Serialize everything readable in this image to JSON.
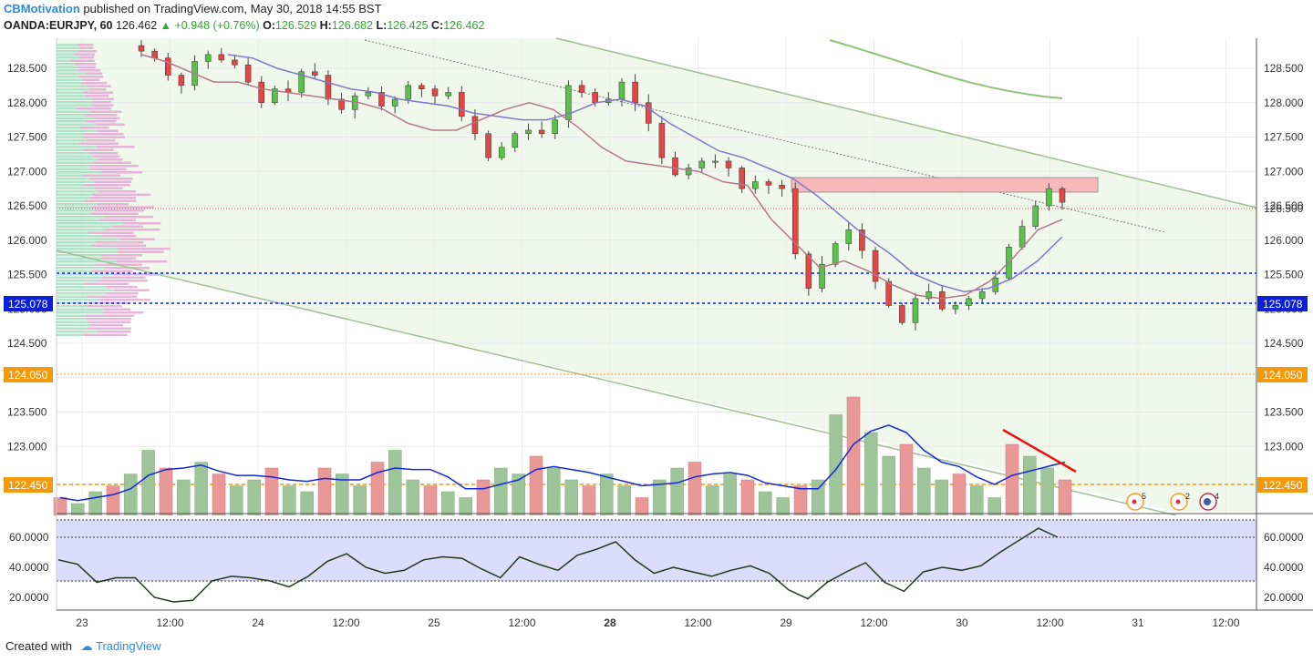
{
  "header": {
    "author": "CBMotivation",
    "published": "published on TradingView.com, May 30, 2018 14:55 BST",
    "symbol": "OANDA:EURJPY, 60",
    "last": "126.462",
    "change": "▲ +0.948 (+0.76%)",
    "o_label": "O:",
    "o": "126.529",
    "h_label": "H:",
    "h": "126.682",
    "l_label": "L:",
    "l": "126.425",
    "c_label": "C:",
    "c": "126.462"
  },
  "footer": {
    "created": "Created with",
    "brand": "TradingView"
  },
  "colors": {
    "up": "#5ac24a",
    "down": "#e04848",
    "vol_up": "#9ec49a",
    "vol_down": "#e99797",
    "channel": "#9fc08f",
    "level_blue": "#0b1fd8",
    "level_orange": "#f29a0b",
    "rsi_band": "#dcdcfb",
    "tag_blue": "#0b1fd8",
    "tag_orange": "#f29a0b"
  },
  "chart_data": [
    {
      "type": "candlestick",
      "x_labels": [
        "23",
        "12:00",
        "24",
        "12:00",
        "25",
        "12:00",
        "28",
        "12:00",
        "29",
        "12:00",
        "30",
        "12:00",
        "31",
        "12:00"
      ],
      "y_ticks": [
        "128.500",
        "128.000",
        "127.500",
        "127.000",
        "126.500",
        "126.000",
        "125.500",
        "125.000",
        "124.500",
        "124.000",
        "123.500",
        "123.000",
        "122.450"
      ],
      "ylim": [
        122.0,
        129.0
      ],
      "series": [
        {
          "name": "EURJPY hourly close (approx.)",
          "values": [
            128.75,
            128.65,
            128.4,
            128.25,
            128.6,
            128.7,
            128.62,
            128.55,
            128.3,
            128.0,
            128.2,
            128.15,
            128.45,
            128.4,
            128.05,
            127.9,
            128.1,
            128.15,
            127.95,
            128.05,
            128.25,
            128.2,
            128.1,
            128.15,
            127.8,
            127.55,
            127.2,
            127.35,
            127.55,
            127.6,
            127.55,
            127.75,
            128.25,
            128.15,
            128.0,
            128.05,
            128.3,
            128.0,
            127.7,
            127.2,
            126.95,
            127.05,
            127.15,
            127.15,
            127.05,
            126.75,
            126.85,
            126.8,
            126.75,
            125.8,
            125.3,
            125.65,
            125.95,
            126.15,
            125.85,
            125.4,
            125.05,
            124.8,
            125.15,
            125.25,
            125.0,
            125.05,
            125.15,
            125.25,
            125.45,
            125.9,
            126.2,
            126.5,
            126.75,
            126.55
          ]
        },
        {
          "name": "MA fast (approx.)",
          "values": [
            128.7,
            128.6,
            128.45,
            128.3,
            128.3,
            128.2,
            128.15,
            128.1,
            128.05,
            128.0,
            127.9,
            127.7,
            127.6,
            127.6,
            127.75,
            127.9,
            128.0,
            127.9,
            127.65,
            127.35,
            127.15,
            127.1,
            127.05,
            127.0,
            126.85,
            126.8,
            126.3,
            125.95,
            125.6,
            125.7,
            125.55,
            125.35,
            125.2,
            125.15,
            125.2,
            125.4,
            125.75,
            126.15,
            126.3
          ]
        },
        {
          "name": "MA slow (approx.)",
          "values": [
            128.7,
            128.65,
            128.5,
            128.4,
            128.3,
            128.2,
            128.15,
            128.05,
            128.0,
            127.95,
            127.85,
            127.8,
            127.75,
            127.75,
            127.85,
            128.0,
            128.05,
            127.95,
            127.7,
            127.5,
            127.3,
            127.2,
            127.05,
            126.9,
            126.65,
            126.35,
            126.05,
            125.8,
            125.5,
            125.35,
            125.25,
            125.3,
            125.45,
            125.7,
            126.05
          ]
        },
        {
          "name": "Volume (approx., relative)",
          "values": [
            3,
            2,
            4,
            5,
            7,
            11,
            8,
            6,
            9,
            7,
            5,
            6,
            8,
            5,
            4,
            8,
            7,
            5,
            9,
            11,
            6,
            5,
            4,
            3,
            6,
            8,
            7,
            10,
            8,
            6,
            5,
            7,
            5,
            3,
            6,
            8,
            9,
            5,
            7,
            6,
            4,
            3,
            5,
            6,
            17,
            20,
            14,
            10,
            12,
            8,
            6,
            7,
            5,
            3,
            12,
            10,
            8,
            6
          ]
        },
        {
          "name": "RSI (approx.)",
          "values": [
            45,
            42,
            30,
            33,
            33,
            20,
            17,
            18,
            31,
            34,
            33,
            31,
            27,
            34,
            44,
            49,
            40,
            36,
            38,
            45,
            47,
            46,
            39,
            33,
            47,
            42,
            38,
            48,
            52,
            57,
            45,
            36,
            40,
            37,
            34,
            38,
            41,
            36,
            25,
            19,
            30,
            37,
            43,
            30,
            24,
            37,
            40,
            38,
            41,
            50,
            58,
            66,
            60
          ]
        }
      ]
    }
  ],
  "levels": {
    "current_price": "126.500",
    "tag_upper": "125.078",
    "tag_orange": "124.050",
    "tag_volume": "122.450",
    "rsi_ticks": [
      "60.0000",
      "40.0000",
      "20.0000"
    ]
  },
  "markers": [
    "5",
    "2",
    "4"
  ]
}
